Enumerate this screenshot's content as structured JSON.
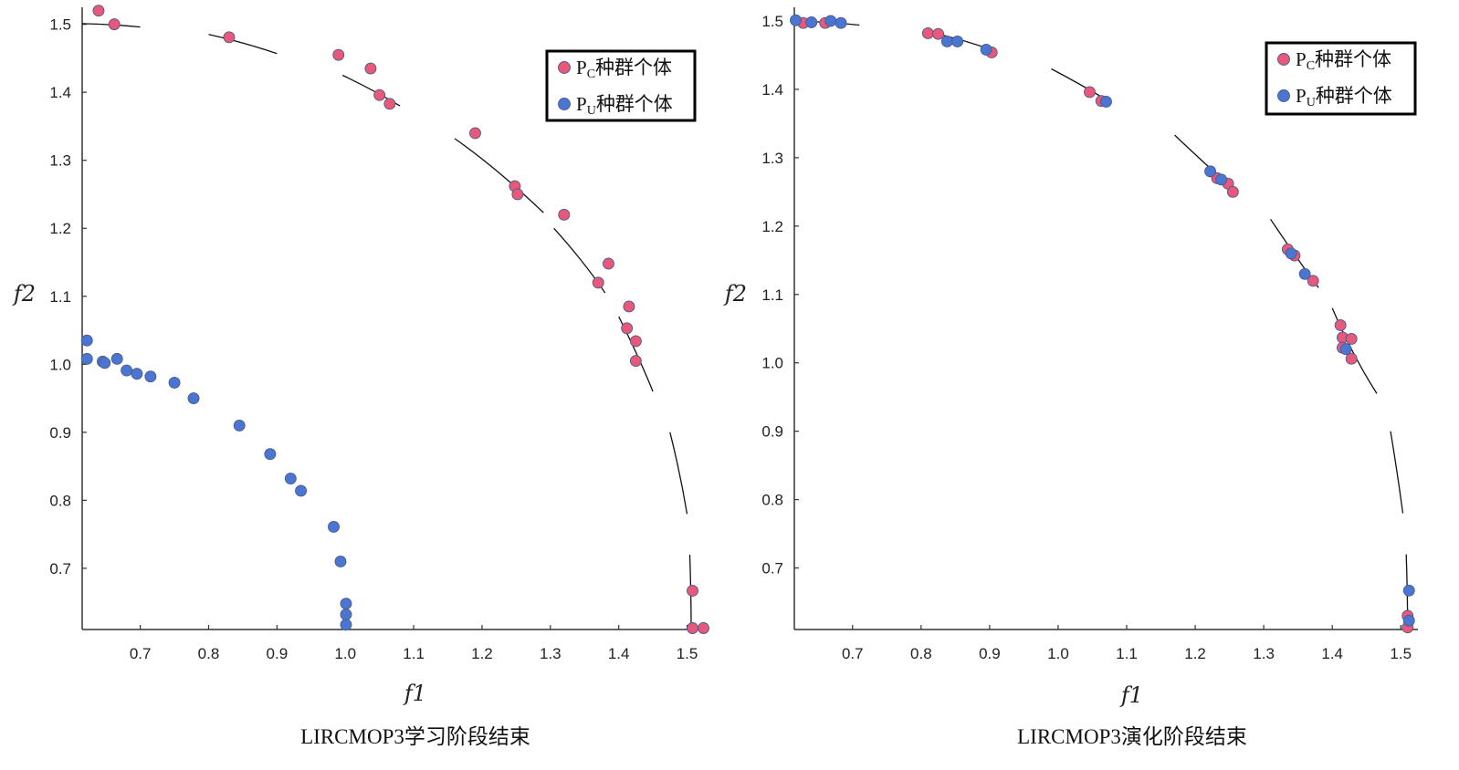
{
  "chart_data": [
    {
      "type": "scatter",
      "caption": "LIRCMOP3学习阶段结束",
      "xlabel": "f1",
      "ylabel": "f2",
      "xlim": [
        0.615,
        1.53
      ],
      "ylim": [
        0.61,
        1.525
      ],
      "xticks": [
        0.7,
        0.8,
        0.9,
        1.0,
        1.1,
        1.2,
        1.3,
        1.4,
        1.5
      ],
      "xtick_labels": [
        "0.7",
        "0.8",
        "0.9",
        "1.0",
        "1.1",
        "1.2",
        "1.3",
        "1.4",
        "1.5"
      ],
      "yticks": [
        0.7,
        0.8,
        0.9,
        1.0,
        1.1,
        1.2,
        1.3,
        1.4,
        1.5
      ],
      "ytick_labels": [
        "0.7",
        "0.8",
        "0.9",
        "1.0",
        "1.1",
        "1.2",
        "1.3",
        "1.4",
        "1.5"
      ],
      "legend": {
        "position": "top-right",
        "items": [
          {
            "series": 0,
            "text": "种群个体",
            "prefix": "P",
            "sub": "C"
          },
          {
            "series": 1,
            "text": "种群个体",
            "prefix": "P",
            "sub": "U"
          }
        ]
      },
      "front_segments": [
        [
          [
            0.615,
            1.501
          ],
          [
            0.66,
            1.5
          ],
          [
            0.7,
            1.496
          ]
        ],
        [
          [
            0.8,
            1.485
          ],
          [
            0.85,
            1.474
          ],
          [
            0.9,
            1.457
          ]
        ],
        [
          [
            0.996,
            1.425
          ],
          [
            1.04,
            1.404
          ],
          [
            1.08,
            1.38
          ]
        ],
        [
          [
            1.16,
            1.332
          ],
          [
            1.22,
            1.29
          ],
          [
            1.29,
            1.223
          ]
        ],
        [
          [
            1.305,
            1.2
          ],
          [
            1.35,
            1.15
          ],
          [
            1.38,
            1.105
          ]
        ],
        [
          [
            1.4,
            1.07
          ],
          [
            1.43,
            1.01
          ],
          [
            1.45,
            0.96
          ]
        ],
        [
          [
            1.475,
            0.9
          ],
          [
            1.49,
            0.84
          ],
          [
            1.5,
            0.78
          ]
        ],
        [
          [
            1.504,
            0.72
          ],
          [
            1.506,
            0.66
          ],
          [
            1.506,
            0.61
          ]
        ]
      ],
      "series": [
        {
          "name": "PC种群个体",
          "color": "#e8587a",
          "points": [
            [
              0.639,
              1.52
            ],
            [
              0.662,
              1.5
            ],
            [
              0.83,
              1.481
            ],
            [
              0.99,
              1.455
            ],
            [
              1.037,
              1.435
            ],
            [
              1.05,
              1.396
            ],
            [
              1.065,
              1.383
            ],
            [
              1.19,
              1.34
            ],
            [
              1.248,
              1.262
            ],
            [
              1.252,
              1.25
            ],
            [
              1.32,
              1.22
            ],
            [
              1.385,
              1.148
            ],
            [
              1.37,
              1.12
            ],
            [
              1.415,
              1.085
            ],
            [
              1.412,
              1.053
            ],
            [
              1.425,
              1.034
            ],
            [
              1.425,
              1.005
            ],
            [
              1.508,
              0.667
            ],
            [
              1.508,
              0.612
            ],
            [
              1.524,
              0.612
            ]
          ]
        },
        {
          "name": "PU种群个体",
          "color": "#4a76d1",
          "points": [
            [
              0.622,
              1.035
            ],
            [
              0.622,
              1.008
            ],
            [
              0.645,
              1.004
            ],
            [
              0.648,
              1.002
            ],
            [
              0.666,
              1.008
            ],
            [
              0.68,
              0.991
            ],
            [
              0.695,
              0.986
            ],
            [
              0.715,
              0.982
            ],
            [
              0.75,
              0.973
            ],
            [
              0.778,
              0.95
            ],
            [
              0.845,
              0.91
            ],
            [
              0.89,
              0.868
            ],
            [
              0.92,
              0.832
            ],
            [
              0.935,
              0.814
            ],
            [
              0.983,
              0.761
            ],
            [
              0.993,
              0.71
            ],
            [
              1.001,
              0.648
            ],
            [
              1.001,
              0.632
            ],
            [
              1.001,
              0.617
            ]
          ]
        }
      ]
    },
    {
      "type": "scatter",
      "caption": "LIRCMOP3演化阶段结束",
      "xlabel": "f1",
      "ylabel": "f2",
      "xlim": [
        0.615,
        1.525
      ],
      "ylim": [
        0.61,
        1.52
      ],
      "xticks": [
        0.7,
        0.8,
        0.9,
        1.0,
        1.1,
        1.2,
        1.3,
        1.4,
        1.5
      ],
      "xtick_labels": [
        "0.7",
        "0.8",
        "0.9",
        "1.0",
        "1.1",
        "1.2",
        "1.3",
        "1.4",
        "1.5"
      ],
      "yticks": [
        0.7,
        0.8,
        0.9,
        1.0,
        1.1,
        1.2,
        1.3,
        1.4,
        1.5
      ],
      "ytick_labels": [
        "0.7",
        "0.8",
        "0.9",
        "1.0",
        "1.1",
        "1.2",
        "1.3",
        "1.4",
        "1.5"
      ],
      "legend": {
        "position": "top-right",
        "items": [
          {
            "series": 0,
            "text": "种群个体",
            "prefix": "P",
            "sub": "C"
          },
          {
            "series": 1,
            "text": "种群个体",
            "prefix": "P",
            "sub": "U"
          }
        ]
      },
      "front_segments": [
        [
          [
            0.615,
            1.5
          ],
          [
            0.66,
            1.499
          ],
          [
            0.71,
            1.494
          ]
        ],
        [
          [
            0.81,
            1.484
          ],
          [
            0.86,
            1.474
          ],
          [
            0.91,
            1.455
          ]
        ],
        [
          [
            0.99,
            1.43
          ],
          [
            1.03,
            1.409
          ],
          [
            1.075,
            1.382
          ]
        ],
        [
          [
            1.17,
            1.333
          ],
          [
            1.21,
            1.295
          ],
          [
            1.26,
            1.25
          ]
        ],
        [
          [
            1.31,
            1.21
          ],
          [
            1.35,
            1.15
          ],
          [
            1.38,
            1.11
          ]
        ],
        [
          [
            1.4,
            1.08
          ],
          [
            1.43,
            1.01
          ],
          [
            1.465,
            0.955
          ]
        ],
        [
          [
            1.485,
            0.9
          ],
          [
            1.495,
            0.84
          ],
          [
            1.503,
            0.78
          ]
        ],
        [
          [
            1.508,
            0.72
          ],
          [
            1.51,
            0.66
          ],
          [
            1.51,
            0.61
          ]
        ]
      ],
      "series": [
        {
          "name": "PC种群个体",
          "color": "#e8587a",
          "points": [
            [
              0.628,
              1.497
            ],
            [
              0.66,
              1.497
            ],
            [
              0.81,
              1.482
            ],
            [
              0.825,
              1.481
            ],
            [
              0.903,
              1.454
            ],
            [
              1.046,
              1.396
            ],
            [
              1.063,
              1.383
            ],
            [
              1.232,
              1.27
            ],
            [
              1.248,
              1.262
            ],
            [
              1.255,
              1.25
            ],
            [
              1.335,
              1.166
            ],
            [
              1.345,
              1.157
            ],
            [
              1.372,
              1.12
            ],
            [
              1.412,
              1.055
            ],
            [
              1.415,
              1.037
            ],
            [
              1.428,
              1.035
            ],
            [
              1.415,
              1.022
            ],
            [
              1.428,
              1.006
            ],
            [
              1.51,
              0.63
            ],
            [
              1.51,
              0.613
            ]
          ]
        },
        {
          "name": "PU种群个体",
          "color": "#4a76d1",
          "points": [
            [
              0.617,
              1.501
            ],
            [
              0.64,
              1.498
            ],
            [
              0.668,
              1.5
            ],
            [
              0.683,
              1.497
            ],
            [
              0.838,
              1.47
            ],
            [
              0.853,
              1.47
            ],
            [
              0.895,
              1.458
            ],
            [
              1.07,
              1.382
            ],
            [
              1.222,
              1.28
            ],
            [
              1.238,
              1.268
            ],
            [
              1.34,
              1.16
            ],
            [
              1.36,
              1.13
            ],
            [
              1.42,
              1.02
            ],
            [
              1.512,
              0.667
            ],
            [
              1.512,
              0.623
            ]
          ]
        }
      ]
    }
  ]
}
